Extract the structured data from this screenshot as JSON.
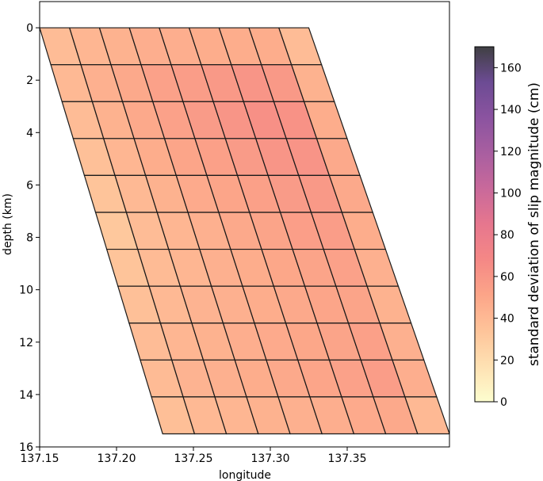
{
  "chart_data": {
    "type": "heatmap",
    "title": "",
    "xlabel": "longitude",
    "ylabel": "depth (km)",
    "xlim": [
      137.15,
      137.4165
    ],
    "ylim": [
      16,
      -1
    ],
    "x_ticks": [
      "137.15",
      "137.20",
      "137.25",
      "137.30",
      "137.35"
    ],
    "x_tick_values": [
      137.15,
      137.2,
      137.25,
      137.3,
      137.35
    ],
    "y_ticks": [
      "0",
      "2",
      "4",
      "6",
      "8",
      "10",
      "12",
      "14",
      "16"
    ],
    "y_tick_values": [
      0,
      2,
      4,
      6,
      8,
      10,
      12,
      14,
      16
    ],
    "fault": {
      "top_lon_start": 137.15,
      "top_lon_end": 137.325,
      "bottom_lon_start": 137.23,
      "bottom_lon_end": 137.4165,
      "depth_top": 0,
      "depth_bottom": 15.5,
      "n_strike": 9,
      "n_dip": 11
    },
    "colorbar": {
      "label": "standard deviation of slip magnitude (cm)",
      "min": 0,
      "max": 170,
      "ticks": [
        "0",
        "20",
        "40",
        "60",
        "80",
        "100",
        "120",
        "140",
        "160"
      ],
      "tick_values": [
        0,
        20,
        40,
        60,
        80,
        100,
        120,
        140,
        160
      ],
      "colormap": "magma_r",
      "alpha": 0.75
    },
    "values": [
      [
        38,
        42,
        44,
        46,
        46,
        47,
        47,
        47,
        38
      ],
      [
        40,
        45,
        49,
        53,
        56,
        58,
        60,
        58,
        44
      ],
      [
        38,
        44,
        49,
        53,
        57,
        60,
        63,
        62,
        47
      ],
      [
        36,
        42,
        47,
        51,
        54,
        57,
        60,
        61,
        49
      ],
      [
        34,
        40,
        44,
        48,
        51,
        54,
        57,
        58,
        49
      ],
      [
        32,
        38,
        42,
        45,
        49,
        52,
        55,
        56,
        47
      ],
      [
        34,
        39,
        42,
        45,
        47,
        50,
        52,
        53,
        45
      ],
      [
        36,
        40,
        43,
        45,
        47,
        49,
        51,
        52,
        44
      ],
      [
        38,
        42,
        44,
        46,
        48,
        50,
        52,
        54,
        45
      ],
      [
        39,
        43,
        45,
        47,
        49,
        51,
        53,
        56,
        46
      ],
      [
        37,
        40,
        42,
        44,
        45,
        46,
        48,
        49,
        40
      ]
    ]
  }
}
